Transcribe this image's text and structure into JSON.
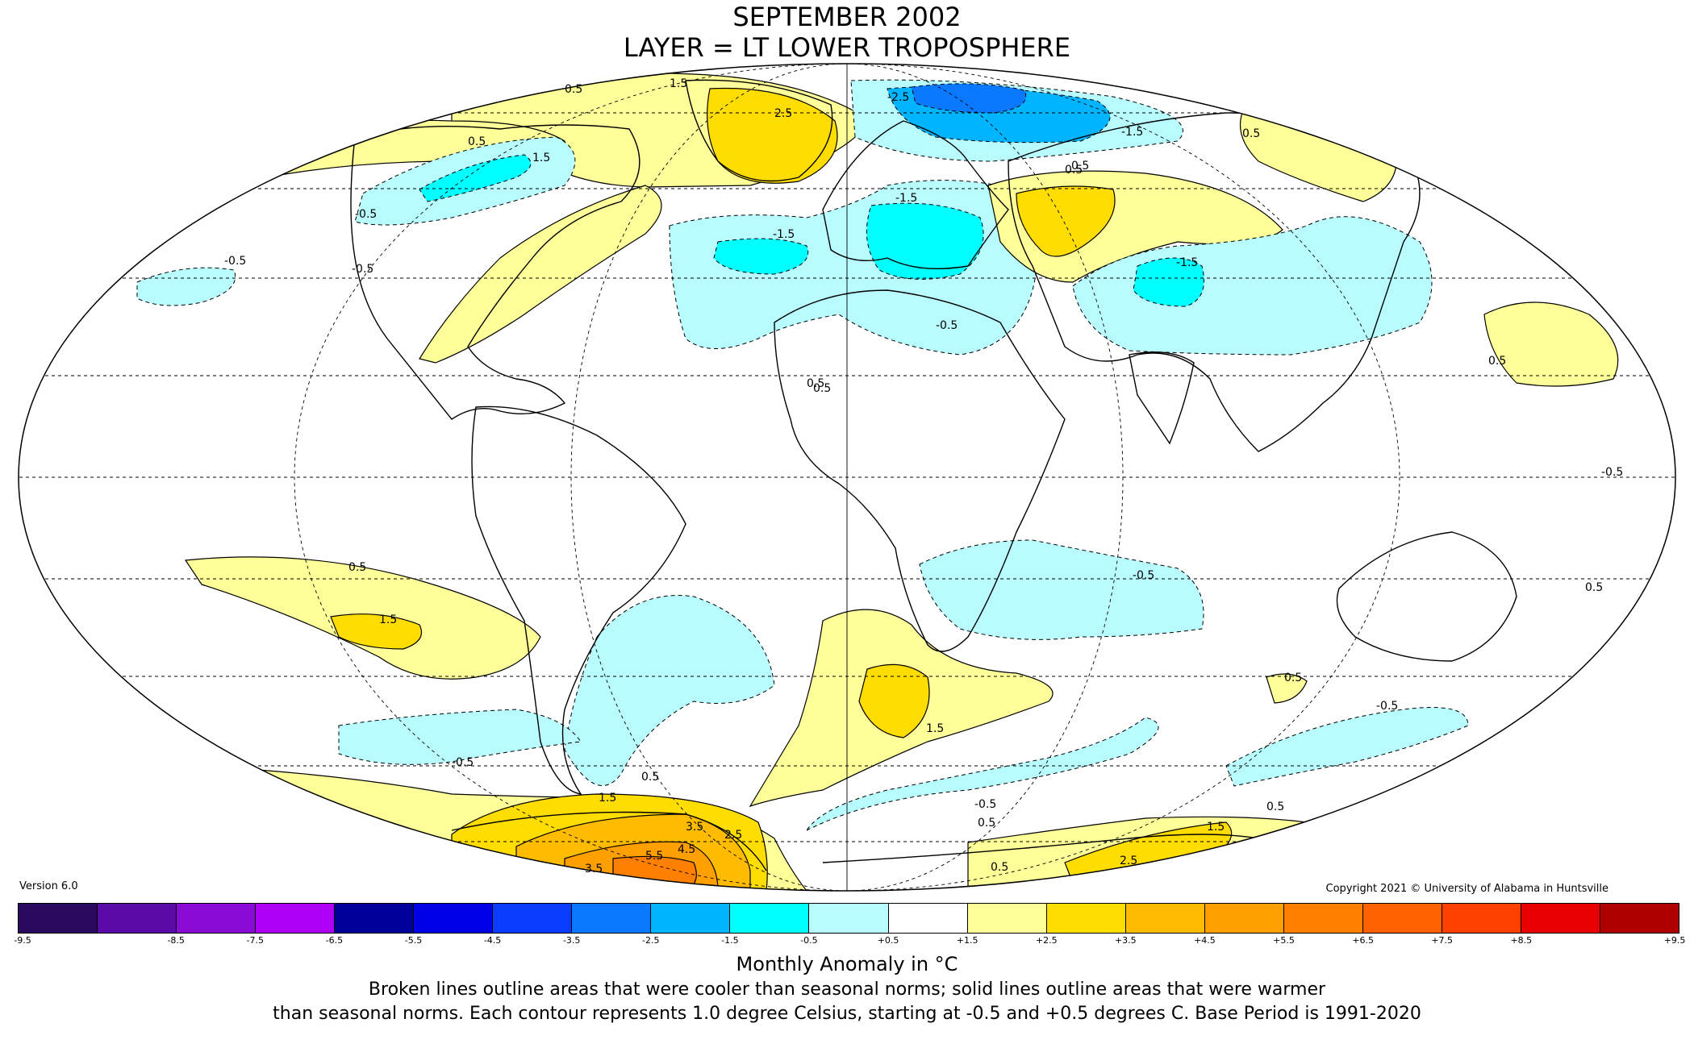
{
  "header": {
    "title_line1": "SEPTEMBER 2002",
    "title_line2": "LAYER = LT LOWER TROPOSPHERE"
  },
  "footer": {
    "version": "Version 6.0",
    "copyright": "Copyright 2021 © University of Alabama in Huntsville",
    "colorbar_label": "Monthly Anomaly in °C",
    "note_line1": "Broken lines outline areas that were cooler than seasonal norms; solid lines outline areas that were warmer",
    "note_line2": "than seasonal norms. Each contour represents 1.0 degree Celsius, starting at -0.5 and +0.5 degrees C. Base Period is 1991-2020"
  },
  "colorbar": {
    "ticks": [
      "-9.5",
      "-8.5",
      "-7.5",
      "-6.5",
      "-5.5",
      "-4.5",
      "-3.5",
      "-2.5",
      "-1.5",
      "-0.5",
      "+0.5",
      "+1.5",
      "+2.5",
      "+3.5",
      "+4.5",
      "+5.5",
      "+6.5",
      "+7.5",
      "+8.5",
      "+9.5"
    ],
    "colors": [
      "#2a0a5e",
      "#5a0aa6",
      "#8a0ad6",
      "#ae00f5",
      "#00009b",
      "#0000e6",
      "#0a3cff",
      "#0a78ff",
      "#00b4ff",
      "#00ffff",
      "#b8fcff",
      "#ffffff",
      "#ffff99",
      "#ffdd00",
      "#ffbb00",
      "#ffa000",
      "#ff8000",
      "#ff6000",
      "#ff4000",
      "#e80000",
      "#b00000"
    ]
  },
  "map_labels": [
    {
      "text": "0.5"
    },
    {
      "text": "1.5"
    },
    {
      "text": "2.5"
    },
    {
      "text": "0.5"
    },
    {
      "text": "1.5"
    },
    {
      "text": "-0.5"
    },
    {
      "text": "-0.5"
    },
    {
      "text": "-0.5"
    },
    {
      "text": "-1.5"
    },
    {
      "text": "-2.5"
    },
    {
      "text": "-1.5"
    },
    {
      "text": "0.5"
    },
    {
      "text": "0.5"
    },
    {
      "text": "-1.5"
    },
    {
      "text": "-1.5"
    },
    {
      "text": "-0.5"
    },
    {
      "text": "0.5"
    },
    {
      "text": "0.5"
    },
    {
      "text": "-0.5"
    },
    {
      "text": "0.5"
    },
    {
      "text": "1.5"
    },
    {
      "text": "-0.5"
    },
    {
      "text": "0.5"
    },
    {
      "text": "1.5"
    },
    {
      "text": "-0.5"
    },
    {
      "text": "0.5"
    },
    {
      "text": "1.5"
    },
    {
      "text": "3.5"
    },
    {
      "text": "2.5"
    },
    {
      "text": "4.5"
    },
    {
      "text": "5.5"
    },
    {
      "text": "3.5"
    },
    {
      "text": "-0.5"
    },
    {
      "text": "0.5"
    },
    {
      "text": "0.5"
    },
    {
      "text": "0.5"
    },
    {
      "text": "-0.5"
    },
    {
      "text": "0.5"
    },
    {
      "text": "0.5"
    },
    {
      "text": "1.5"
    },
    {
      "text": "2.5"
    },
    {
      "text": "0.5"
    }
  ],
  "anomaly_regions": [
    {
      "level": "+0.5"
    },
    {
      "level": "+1.5"
    },
    {
      "level": "+0.5"
    },
    {
      "level": "-0.5"
    },
    {
      "level": "-1.5"
    },
    {
      "level": "-0.5"
    },
    {
      "level": "-1.5"
    },
    {
      "level": "-2.5"
    },
    {
      "level": "-0.5"
    },
    {
      "level": "-0.5"
    },
    {
      "level": "-1.5"
    },
    {
      "level": "+0.5"
    },
    {
      "level": "+1.5"
    },
    {
      "level": "-0.5"
    },
    {
      "level": "-1.5"
    },
    {
      "level": "+0.5"
    },
    {
      "level": "+0.5"
    },
    {
      "level": "+1.5"
    },
    {
      "level": "-0.5"
    },
    {
      "level": "+0.5"
    },
    {
      "level": "+1.5"
    },
    {
      "level": "-0.5"
    },
    {
      "level": "-0.5"
    },
    {
      "level": "+0.5"
    },
    {
      "level": "+0.5"
    },
    {
      "level": "+1.5"
    },
    {
      "level": "+2.5"
    },
    {
      "level": "+3.5"
    },
    {
      "level": "+4.5"
    },
    {
      "level": "-0.5"
    },
    {
      "level": "+0.5"
    },
    {
      "level": "+1.5"
    },
    {
      "level": "-0.5"
    },
    {
      "level": "+0.5"
    },
    {
      "level": "-0.5"
    }
  ]
}
